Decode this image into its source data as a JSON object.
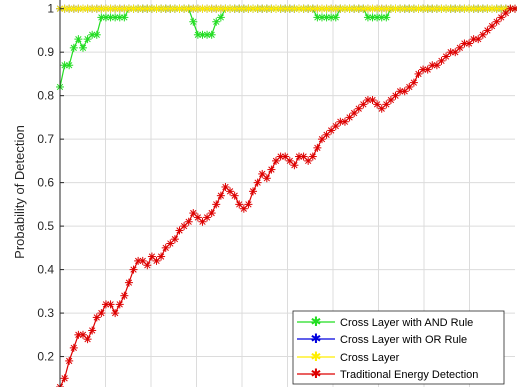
{
  "chart_data": {
    "type": "line",
    "title": "",
    "xlabel": "",
    "ylabel": "Probability of Detection",
    "ylim": [
      0.13,
      1.02
    ],
    "xlim": [
      1,
      100
    ],
    "yticks": [
      0.2,
      0.3,
      0.4,
      0.5,
      0.6,
      0.7,
      0.8,
      0.9,
      1
    ],
    "ytick_labels": [
      "0.2",
      "0.3",
      "0.4",
      "0.5",
      "0.6",
      "0.7",
      "0.8",
      "0.9",
      "1"
    ],
    "grid": true,
    "legend_position": "bottom-right",
    "x": [
      1,
      2,
      3,
      4,
      5,
      6,
      7,
      8,
      9,
      10,
      11,
      12,
      13,
      14,
      15,
      16,
      17,
      18,
      19,
      20,
      21,
      22,
      23,
      24,
      25,
      26,
      27,
      28,
      29,
      30,
      31,
      32,
      33,
      34,
      35,
      36,
      37,
      38,
      39,
      40,
      41,
      42,
      43,
      44,
      45,
      46,
      47,
      48,
      49,
      50,
      51,
      52,
      53,
      54,
      55,
      56,
      57,
      58,
      59,
      60,
      61,
      62,
      63,
      64,
      65,
      66,
      67,
      68,
      69,
      70,
      71,
      72,
      73,
      74,
      75,
      76,
      77,
      78,
      79,
      80,
      81,
      82,
      83,
      84,
      85,
      86,
      87,
      88,
      89,
      90,
      91,
      92,
      93,
      94,
      95,
      96,
      97,
      98,
      99,
      100
    ],
    "series": [
      {
        "name": "Cross Layer with AND Rule",
        "color": "#22dd22",
        "marker": "asterisk",
        "values": [
          0.82,
          0.87,
          0.87,
          0.91,
          0.93,
          0.91,
          0.93,
          0.94,
          0.94,
          0.98,
          0.98,
          0.98,
          0.98,
          0.98,
          0.98,
          1.0,
          1.0,
          1.0,
          1.0,
          1.0,
          1.0,
          1.0,
          1.0,
          1.0,
          1.0,
          1.0,
          1.0,
          1.0,
          1.0,
          0.97,
          0.94,
          0.94,
          0.94,
          0.94,
          0.97,
          0.98,
          1.0,
          1.0,
          1.0,
          1.0,
          1.0,
          1.0,
          1.0,
          1.0,
          1.0,
          1.0,
          1.0,
          1.0,
          1.0,
          1.0,
          1.0,
          1.0,
          1.0,
          1.0,
          1.0,
          1.0,
          0.98,
          0.98,
          0.98,
          0.98,
          0.98,
          1.0,
          1.0,
          1.0,
          1.0,
          1.0,
          1.0,
          0.98,
          0.98,
          0.98,
          0.98,
          0.98,
          1.0,
          1.0,
          1.0,
          1.0,
          1.0,
          1.0,
          1.0,
          1.0,
          1.0,
          1.0,
          1.0,
          1.0,
          1.0,
          1.0,
          1.0,
          1.0,
          1.0,
          1.0,
          1.0,
          1.0,
          1.0,
          1.0,
          1.0,
          1.0,
          1.0,
          1.0,
          1.0,
          1.0
        ]
      },
      {
        "name": "Cross Layer with OR Rule",
        "color": "#0000dd",
        "marker": "asterisk",
        "values": [
          1.0,
          1.0,
          1.0,
          1.0,
          1.0,
          1.0,
          1.0,
          1.0,
          1.0,
          1.0,
          1.0,
          1.0,
          1.0,
          1.0,
          1.0,
          1.0,
          1.0,
          1.0,
          1.0,
          1.0,
          1.0,
          1.0,
          1.0,
          1.0,
          1.0,
          1.0,
          1.0,
          1.0,
          1.0,
          1.0,
          1.0,
          1.0,
          1.0,
          1.0,
          1.0,
          1.0,
          1.0,
          1.0,
          1.0,
          1.0,
          1.0,
          1.0,
          1.0,
          1.0,
          1.0,
          1.0,
          1.0,
          1.0,
          1.0,
          1.0,
          1.0,
          1.0,
          1.0,
          1.0,
          1.0,
          1.0,
          1.0,
          1.0,
          1.0,
          1.0,
          1.0,
          1.0,
          1.0,
          1.0,
          1.0,
          1.0,
          1.0,
          1.0,
          1.0,
          1.0,
          1.0,
          1.0,
          1.0,
          1.0,
          1.0,
          1.0,
          1.0,
          1.0,
          1.0,
          1.0,
          1.0,
          1.0,
          1.0,
          1.0,
          1.0,
          1.0,
          1.0,
          1.0,
          1.0,
          1.0,
          1.0,
          1.0,
          1.0,
          1.0,
          1.0,
          1.0,
          1.0,
          1.0,
          1.0,
          1.0
        ]
      },
      {
        "name": "Cross Layer",
        "color": "#ffee00",
        "marker": "asterisk",
        "values": [
          1.0,
          1.0,
          1.0,
          1.0,
          1.0,
          1.0,
          1.0,
          1.0,
          1.0,
          1.0,
          1.0,
          1.0,
          1.0,
          1.0,
          1.0,
          1.0,
          1.0,
          1.0,
          1.0,
          1.0,
          1.0,
          1.0,
          1.0,
          1.0,
          1.0,
          1.0,
          1.0,
          1.0,
          1.0,
          1.0,
          1.0,
          1.0,
          1.0,
          1.0,
          1.0,
          1.0,
          1.0,
          1.0,
          1.0,
          1.0,
          1.0,
          1.0,
          1.0,
          1.0,
          1.0,
          1.0,
          1.0,
          1.0,
          1.0,
          1.0,
          1.0,
          1.0,
          1.0,
          1.0,
          1.0,
          1.0,
          1.0,
          1.0,
          1.0,
          1.0,
          1.0,
          1.0,
          1.0,
          1.0,
          1.0,
          1.0,
          1.0,
          1.0,
          1.0,
          1.0,
          1.0,
          1.0,
          1.0,
          1.0,
          1.0,
          1.0,
          1.0,
          1.0,
          1.0,
          1.0,
          1.0,
          1.0,
          1.0,
          1.0,
          1.0,
          1.0,
          1.0,
          1.0,
          1.0,
          1.0,
          1.0,
          1.0,
          1.0,
          1.0,
          1.0,
          1.0,
          1.0,
          1.0,
          1.0,
          1.0
        ]
      },
      {
        "name": "Traditional Energy Detection",
        "color": "#dd0000",
        "marker": "asterisk",
        "values": [
          0.13,
          0.15,
          0.19,
          0.22,
          0.25,
          0.25,
          0.24,
          0.26,
          0.29,
          0.3,
          0.32,
          0.32,
          0.3,
          0.32,
          0.34,
          0.37,
          0.4,
          0.42,
          0.42,
          0.41,
          0.43,
          0.42,
          0.43,
          0.45,
          0.46,
          0.47,
          0.49,
          0.5,
          0.51,
          0.53,
          0.52,
          0.51,
          0.52,
          0.53,
          0.55,
          0.57,
          0.59,
          0.58,
          0.57,
          0.55,
          0.54,
          0.55,
          0.58,
          0.6,
          0.62,
          0.61,
          0.63,
          0.65,
          0.66,
          0.66,
          0.65,
          0.64,
          0.66,
          0.66,
          0.65,
          0.66,
          0.68,
          0.7,
          0.71,
          0.72,
          0.73,
          0.74,
          0.74,
          0.75,
          0.76,
          0.77,
          0.78,
          0.79,
          0.79,
          0.78,
          0.77,
          0.78,
          0.79,
          0.8,
          0.81,
          0.81,
          0.82,
          0.83,
          0.85,
          0.86,
          0.86,
          0.87,
          0.87,
          0.88,
          0.89,
          0.9,
          0.9,
          0.91,
          0.92,
          0.92,
          0.93,
          0.93,
          0.94,
          0.95,
          0.96,
          0.97,
          0.98,
          0.99,
          1.0,
          1.0
        ]
      }
    ]
  }
}
